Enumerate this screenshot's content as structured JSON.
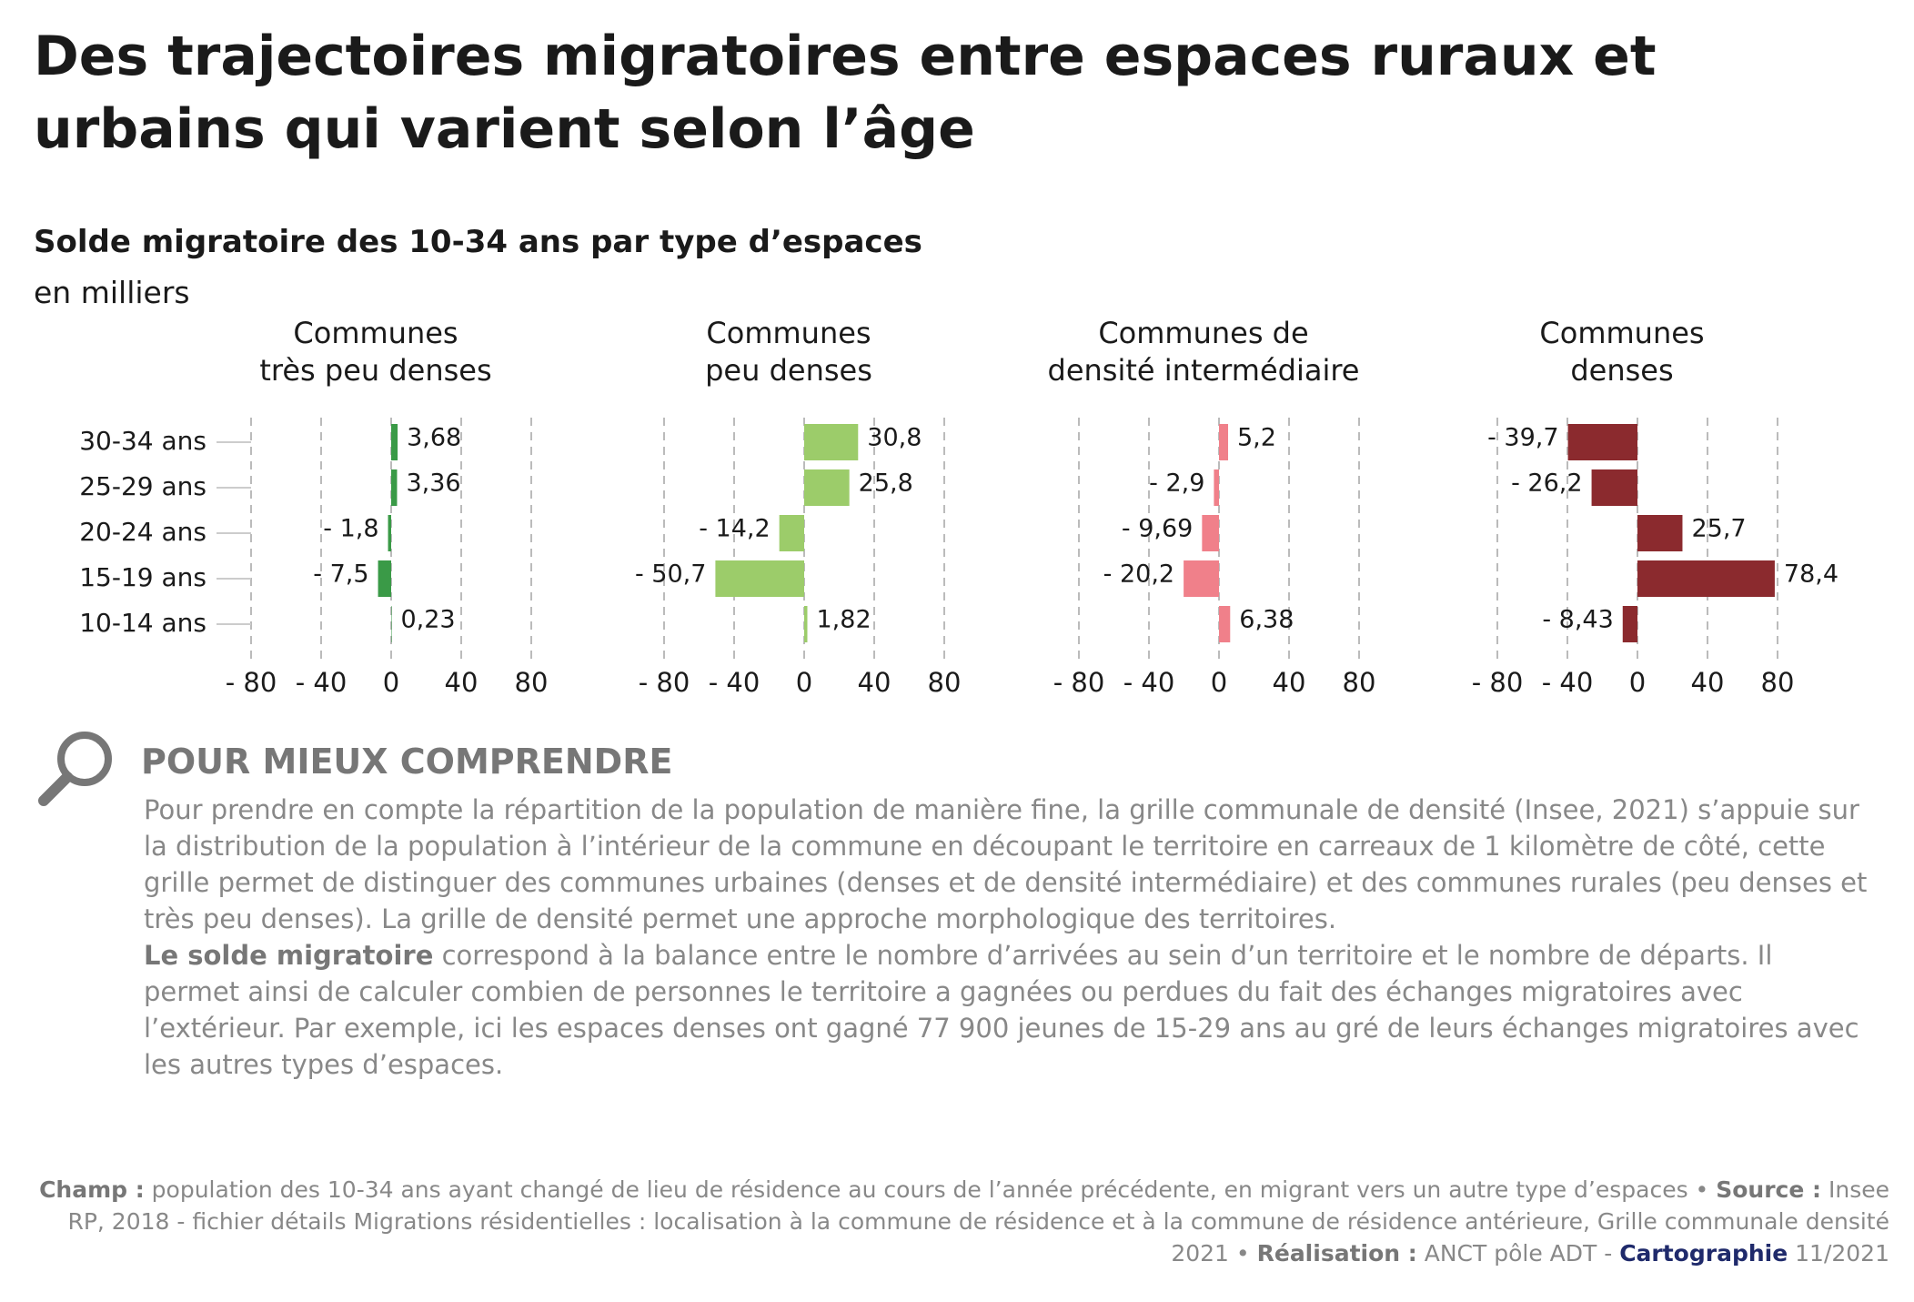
{
  "title": "Des trajectoires migratoires entre espaces ruraux et urbains qui varient selon l’âge",
  "subtitle": "Solde migratoire des 10-34 ans par type d’espaces",
  "unit": "en milliers",
  "chart_data": [
    {
      "type": "bar",
      "orientation": "horizontal",
      "title": [
        "Communes",
        "très peu denses"
      ],
      "categories": [
        "30-34 ans",
        "25-29 ans",
        "20-24 ans",
        "15-19 ans",
        "10-14 ans"
      ],
      "values": [
        3.68,
        3.36,
        -1.8,
        -7.5,
        0.23
      ],
      "value_labels": [
        "3,68",
        "3,36",
        "- 1,8",
        "- 7,5",
        "0,23"
      ],
      "color": "#3a9a47",
      "xlim": [
        -80,
        80
      ],
      "xticks": [
        {
          "value": -80,
          "label": "- 80"
        },
        {
          "value": -40,
          "label": "- 40"
        },
        0,
        40,
        80
      ],
      "grid": true
    },
    {
      "type": "bar",
      "orientation": "horizontal",
      "title": [
        "Communes",
        "peu denses"
      ],
      "values": [
        30.8,
        25.8,
        -14.2,
        -50.7,
        1.82
      ],
      "value_labels": [
        "30,8",
        "25,8",
        "- 14,2",
        "- 50,7",
        "1,82"
      ],
      "color": "#9ccc6a",
      "xlim": [
        -80,
        80
      ],
      "xticks": [
        {
          "value": -80,
          "label": "- 80"
        },
        {
          "value": -40,
          "label": "- 40"
        },
        0,
        40,
        80
      ],
      "grid": true
    },
    {
      "type": "bar",
      "orientation": "horizontal",
      "title": [
        "Communes de",
        "densité intermédiaire"
      ],
      "values": [
        5.2,
        -2.9,
        -9.69,
        -20.2,
        6.38
      ],
      "value_labels": [
        "5,2",
        "- 2,9",
        "- 9,69",
        "- 20,2",
        "6,38"
      ],
      "color": "#f0808a",
      "xlim": [
        -80,
        80
      ],
      "xticks": [
        {
          "value": -80,
          "label": "- 80"
        },
        {
          "value": -40,
          "label": "- 40"
        },
        0,
        40,
        80
      ],
      "grid": true
    },
    {
      "type": "bar",
      "orientation": "horizontal",
      "title": [
        "Communes",
        "denses"
      ],
      "values": [
        -39.7,
        -26.2,
        25.7,
        78.4,
        -8.43
      ],
      "value_labels": [
        "- 39,7",
        "- 26,2",
        "25,7",
        "78,4",
        "- 8,43"
      ],
      "color": "#8b2a2e",
      "xlim": [
        -80,
        80
      ],
      "xticks": [
        {
          "value": -80,
          "label": "- 80"
        },
        {
          "value": -40,
          "label": "- 40"
        },
        0,
        40,
        80
      ],
      "grid": true
    }
  ],
  "info": {
    "heading": "POUR MIEUX COMPRENDRE",
    "paragraphs": [
      [
        {
          "text": "Pour prendre en compte la répartition de la population de manière fine, la grille communale de densité (Insee, 2021) s’appuie sur la distribution de la population à l’intérieur de la commune en découpant le territoire en carreaux de 1 kilomètre de côté, cette grille permet de distinguer des communes urbaines (denses et de densité intermédiaire) et des communes rurales (peu denses et très peu denses). La grille de densité permet une approche morphologique des territoires."
        }
      ],
      [
        {
          "text": "Le solde migratoire",
          "bold": true
        },
        {
          "text": " correspond à la balance entre le nombre d’arrivées au sein d’un territoire et le nombre de départs. Il permet ainsi de calculer combien de personnes le territoire a gagnées ou perdues du fait des échanges migratoires avec l’extérieur. Par exemple, ici les espaces denses ont gagné 77 900 jeunes de 15-29 ans au gré de leurs échanges migratoires avec les autres types d’espaces."
        }
      ]
    ]
  },
  "footer": [
    {
      "text": "Champ :",
      "bold": true
    },
    {
      "text": " population des 10-34 ans ayant changé de lieu de résidence au cours de l’année précédente, en migrant vers un autre type d’espaces • "
    },
    {
      "text": "Source :",
      "bold": true
    },
    {
      "text": " Insee RP, 2018 - fichier détails Migrations résidentielles : localisation à la commune de résidence et à la commune de résidence antérieure,  Grille communale densité 2021 • "
    },
    {
      "text": "Réalisation :",
      "bold": true
    },
    {
      "text": " ANCT pôle ADT - "
    },
    {
      "text": "Cartographie",
      "bold": true,
      "color": "#1f2a6b"
    },
    {
      "text": " 11/2021"
    }
  ]
}
